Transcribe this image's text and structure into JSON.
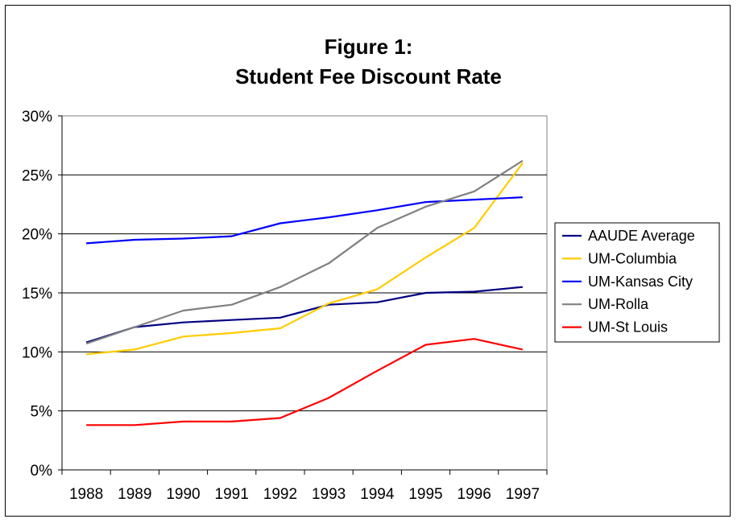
{
  "chart_data": {
    "type": "line",
    "title_line1": "Figure 1:",
    "title_line2": "Student Fee Discount Rate",
    "xlabel": "",
    "ylabel": "",
    "x": [
      "1988",
      "1989",
      "1990",
      "1991",
      "1992",
      "1993",
      "1994",
      "1995",
      "1996",
      "1997"
    ],
    "ylim": [
      0,
      30
    ],
    "yticks": [
      0,
      5,
      10,
      15,
      20,
      25,
      30
    ],
    "ytick_labels": [
      "0%",
      "5%",
      "10%",
      "15%",
      "20%",
      "25%",
      "30%"
    ],
    "grid": true,
    "legend_position": "right",
    "series": [
      {
        "name": "AAUDE Average",
        "color": "#000080",
        "values": [
          10.8,
          12.1,
          12.5,
          12.7,
          12.9,
          14.0,
          14.2,
          15.0,
          15.1,
          15.5
        ]
      },
      {
        "name": "UM-Columbia",
        "color": "#FFCC00",
        "values": [
          9.8,
          10.2,
          11.3,
          11.6,
          12.0,
          14.1,
          15.3,
          18.0,
          20.5,
          26.0
        ]
      },
      {
        "name": "UM-Kansas City",
        "color": "#0000FF",
        "values": [
          19.2,
          19.5,
          19.6,
          19.8,
          20.9,
          21.4,
          22.0,
          22.7,
          22.9,
          23.1
        ]
      },
      {
        "name": "UM-Rolla",
        "color": "#808080",
        "values": [
          10.7,
          12.1,
          13.5,
          14.0,
          15.5,
          17.5,
          20.5,
          22.3,
          23.6,
          26.2
        ]
      },
      {
        "name": "UM-St Louis",
        "color": "#FF0000",
        "values": [
          3.8,
          3.8,
          4.1,
          4.1,
          4.4,
          6.1,
          8.4,
          10.6,
          11.1,
          10.2
        ]
      }
    ]
  }
}
